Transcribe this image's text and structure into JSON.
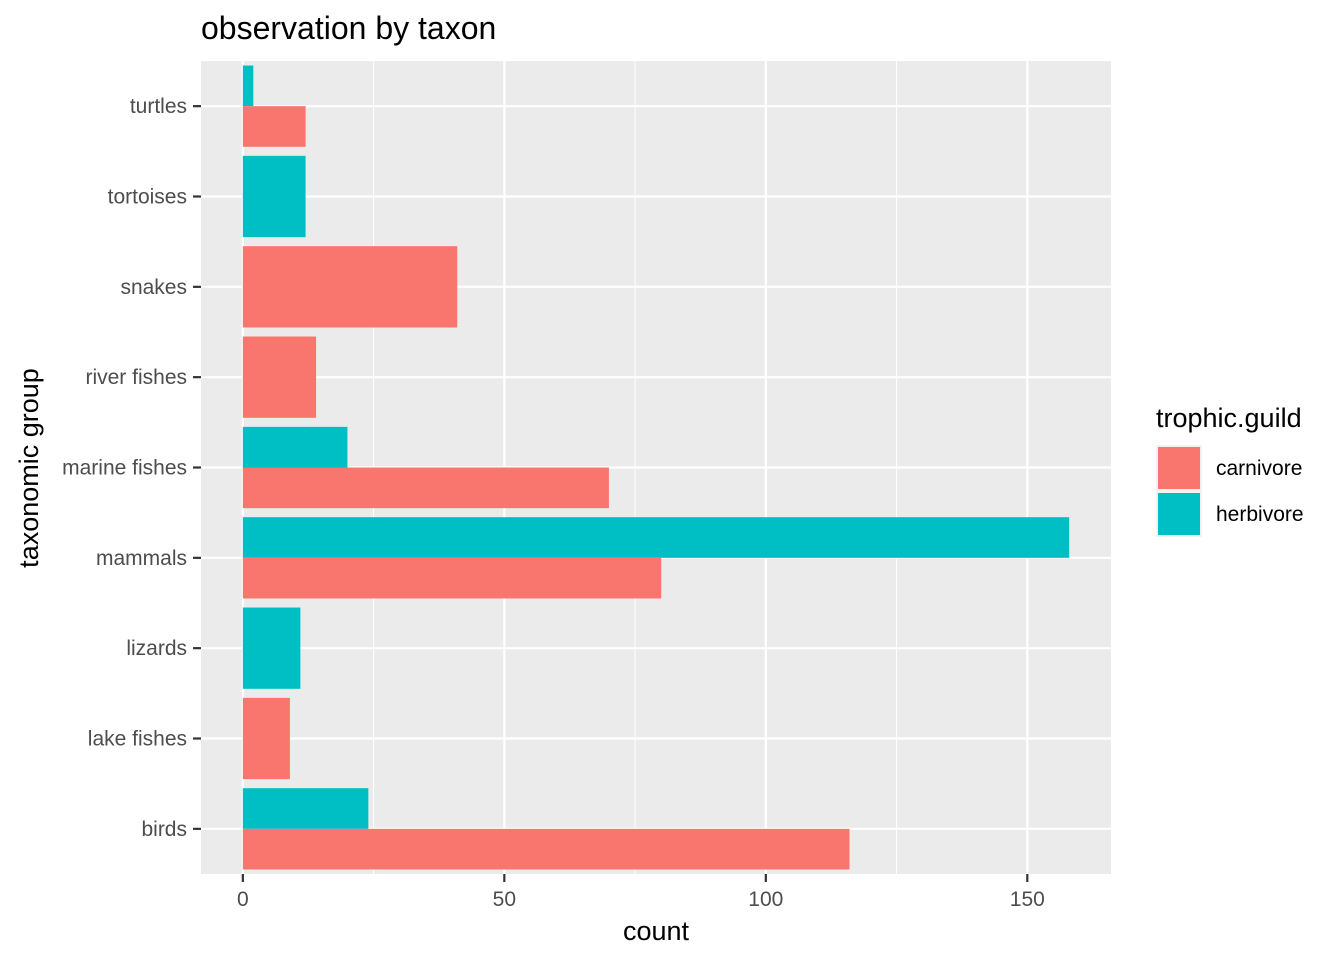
{
  "chart_data": {
    "type": "bar",
    "orientation": "horizontal",
    "title": "observation by taxon",
    "xlabel": "count",
    "ylabel": "taxonomic group",
    "categories": [
      "birds",
      "lake fishes",
      "lizards",
      "mammals",
      "marine fishes",
      "river fishes",
      "snakes",
      "tortoises",
      "turtles"
    ],
    "series": [
      {
        "name": "carnivore",
        "color": "#F8766D",
        "values": [
          116,
          9,
          null,
          80,
          70,
          14,
          41,
          null,
          12
        ]
      },
      {
        "name": "herbivore",
        "color": "#00BFC4",
        "values": [
          24,
          null,
          11,
          158,
          20,
          null,
          null,
          12,
          2
        ]
      }
    ],
    "xlim": [
      -8,
      166
    ],
    "xticks": [
      0,
      50,
      100,
      150
    ],
    "grid": true,
    "legend": {
      "title": "trophic.guild",
      "placement": "right"
    }
  }
}
